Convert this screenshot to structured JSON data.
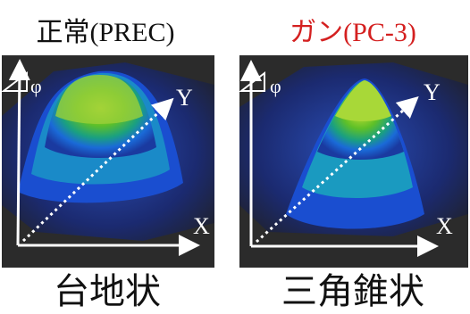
{
  "panels": [
    {
      "title": "正常(PREC)",
      "phi": "φ",
      "y_axis": "Y",
      "x_axis": "X",
      "caption": "台地状"
    },
    {
      "title": "ガン(PC-3)",
      "phi": "φ",
      "y_axis": "Y",
      "x_axis": "X",
      "caption": "三角錐状"
    }
  ]
}
